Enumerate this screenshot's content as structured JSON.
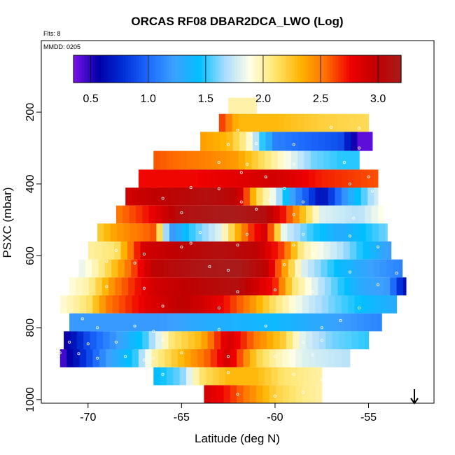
{
  "header": {
    "title": "ORCAS RF08 DBAR2DCA_LWO (Log)",
    "flights_note": "Flts: 8",
    "date_note": "MMDD: 0205"
  },
  "chart_data": {
    "type": "heatmap",
    "title": "ORCAS RF08 DBAR2DCA_LWO (Log)",
    "xlabel": "Latitude (deg N)",
    "ylabel": "PSXC (mbar)",
    "xlim": [
      -72.5,
      -51.5
    ],
    "ylim": [
      1010,
      1
    ],
    "y_reversed": true,
    "x_ticks": [
      -70,
      -65,
      -60,
      -55
    ],
    "x_tick_labels": [
      "-70",
      "-65",
      "-60",
      "-55"
    ],
    "y_ticks": [
      200,
      400,
      600,
      800,
      1000
    ],
    "y_tick_labels": [
      "200",
      "400",
      "600",
      "800",
      "1000"
    ],
    "colorbar": {
      "range": [
        0.35,
        3.2
      ],
      "ticks": [
        0.5,
        1.0,
        1.5,
        2.0,
        2.5,
        3.0
      ],
      "tick_labels": [
        "0.5",
        "1.0",
        "1.5",
        "2.0",
        "2.5",
        "3.0"
      ],
      "palette": [
        "#7a12e8",
        "#0000a8",
        "#0030d8",
        "#1e6cff",
        "#3ca0ff",
        "#00c0ff",
        "#a8dcff",
        "#ffffe6",
        "#ffe56e",
        "#ffb400",
        "#ff7000",
        "#ee0000",
        "#c00000",
        "#a81c1c"
      ]
    },
    "bands": [
      {
        "p_center": 180,
        "p_top": 160,
        "p_bottom": 205,
        "lat_start": -62.5,
        "lat_end": -61.0,
        "values": [
          [
            -62.5,
            2.0
          ],
          [
            -61.0,
            2.0
          ]
        ]
      },
      {
        "p_center": 230,
        "p_top": 205,
        "p_bottom": 255,
        "lat_start": -63.0,
        "lat_end": -55.0,
        "values": [
          [
            -63.0,
            2.7
          ],
          [
            -62.0,
            2.3
          ],
          [
            -60.0,
            2.3
          ],
          [
            -57.5,
            2.2
          ],
          [
            -55.0,
            2.15
          ]
        ]
      },
      {
        "p_center": 282,
        "p_top": 255,
        "p_bottom": 308,
        "lat_start": -64.0,
        "lat_end": -54.8,
        "values": [
          [
            -64.0,
            2.4
          ],
          [
            -62.5,
            2.3
          ],
          [
            -61.5,
            2.0
          ],
          [
            -60.0,
            1.1
          ],
          [
            -58.5,
            1.0
          ],
          [
            -56.5,
            0.9
          ],
          [
            -55.5,
            0.4
          ]
        ]
      },
      {
        "p_center": 335,
        "p_top": 308,
        "p_bottom": 360,
        "lat_start": -66.5,
        "lat_end": -55.5,
        "values": [
          [
            -66.5,
            2.6
          ],
          [
            -64.0,
            2.5
          ],
          [
            -62.0,
            2.4
          ],
          [
            -60.0,
            2.0
          ],
          [
            -58.0,
            1.6
          ],
          [
            -56.5,
            1.5
          ],
          [
            -55.5,
            1.5
          ]
        ]
      },
      {
        "p_center": 385,
        "p_top": 360,
        "p_bottom": 410,
        "lat_start": -67.3,
        "lat_end": -54.5,
        "values": [
          [
            -67.3,
            2.75
          ],
          [
            -64.5,
            2.75
          ],
          [
            -62.5,
            2.8
          ],
          [
            -60.0,
            2.9
          ],
          [
            -57.5,
            2.7
          ],
          [
            -54.5,
            2.6
          ]
        ]
      },
      {
        "p_center": 435,
        "p_top": 410,
        "p_bottom": 460,
        "lat_start": -68.0,
        "lat_end": -54.5,
        "values": [
          [
            -68.0,
            2.9
          ],
          [
            -66.0,
            3.0
          ],
          [
            -63.5,
            3.1
          ],
          [
            -62.0,
            3.0
          ],
          [
            -61.0,
            2.2
          ],
          [
            -60.0,
            1.8
          ],
          [
            -59.0,
            1.2
          ],
          [
            -57.5,
            0.6
          ],
          [
            -56.0,
            1.3
          ],
          [
            -54.5,
            1.8
          ]
        ]
      },
      {
        "p_center": 485,
        "p_top": 460,
        "p_bottom": 510,
        "lat_start": -68.5,
        "lat_end": -54.2,
        "values": [
          [
            -68.5,
            2.5
          ],
          [
            -67.0,
            2.7
          ],
          [
            -65.0,
            3.1
          ],
          [
            -62.5,
            3.2
          ],
          [
            -60.5,
            3.1
          ],
          [
            -59.0,
            2.5
          ],
          [
            -57.5,
            1.8
          ],
          [
            -55.5,
            1.7
          ],
          [
            -54.2,
            1.9
          ]
        ]
      },
      {
        "p_center": 535,
        "p_top": 510,
        "p_bottom": 560,
        "lat_start": -69.5,
        "lat_end": -54.0,
        "values": [
          [
            -69.5,
            2.2
          ],
          [
            -68.5,
            2.4
          ],
          [
            -66.5,
            2.6
          ],
          [
            -65.5,
            1.2
          ],
          [
            -64.5,
            1.5
          ],
          [
            -63.0,
            1.8
          ],
          [
            -61.5,
            2.6
          ],
          [
            -60.5,
            2.9
          ],
          [
            -59.5,
            1.8
          ],
          [
            -58.0,
            1.5
          ],
          [
            -56.5,
            1.3
          ],
          [
            -54.0,
            1.6
          ]
        ]
      },
      {
        "p_center": 585,
        "p_top": 560,
        "p_bottom": 610,
        "lat_start": -70.0,
        "lat_end": -53.8,
        "values": [
          [
            -70.0,
            2.0
          ],
          [
            -68.5,
            2.1
          ],
          [
            -67.0,
            2.9
          ],
          [
            -65.0,
            3.0
          ],
          [
            -63.0,
            3.1
          ],
          [
            -61.0,
            3.0
          ],
          [
            -59.5,
            2.6
          ],
          [
            -58.5,
            2.0
          ],
          [
            -56.5,
            1.7
          ],
          [
            -55.0,
            1.4
          ],
          [
            -53.8,
            1.2
          ]
        ]
      },
      {
        "p_center": 635,
        "p_top": 610,
        "p_bottom": 660,
        "lat_start": -70.5,
        "lat_end": -53.2,
        "values": [
          [
            -70.5,
            1.8
          ],
          [
            -69.5,
            2.0
          ],
          [
            -68.5,
            2.3
          ],
          [
            -66.5,
            3.0
          ],
          [
            -64.0,
            3.15
          ],
          [
            -62.0,
            3.2
          ],
          [
            -60.5,
            3.0
          ],
          [
            -59.5,
            2.4
          ],
          [
            -58.5,
            1.8
          ],
          [
            -56.5,
            1.4
          ],
          [
            -54.5,
            1.2
          ],
          [
            -53.2,
            1.1
          ]
        ]
      },
      {
        "p_center": 685,
        "p_top": 660,
        "p_bottom": 710,
        "lat_start": -71.0,
        "lat_end": -53.0,
        "values": [
          [
            -71.0,
            1.9
          ],
          [
            -70.0,
            2.0
          ],
          [
            -68.5,
            2.5
          ],
          [
            -66.5,
            2.9
          ],
          [
            -64.5,
            3.0
          ],
          [
            -62.0,
            3.1
          ],
          [
            -60.0,
            2.7
          ],
          [
            -59.0,
            2.1
          ],
          [
            -57.5,
            1.7
          ],
          [
            -55.5,
            1.3
          ],
          [
            -54.0,
            1.2
          ],
          [
            -53.0,
            0.6
          ]
        ]
      },
      {
        "p_center": 735,
        "p_top": 710,
        "p_bottom": 760,
        "lat_start": -71.5,
        "lat_end": -53.5,
        "values": [
          [
            -71.5,
            1.9
          ],
          [
            -70.0,
            2.1
          ],
          [
            -69.0,
            2.5
          ],
          [
            -67.0,
            2.8
          ],
          [
            -65.0,
            3.0
          ],
          [
            -63.0,
            2.8
          ],
          [
            -61.5,
            2.5
          ],
          [
            -60.0,
            2.1
          ],
          [
            -58.5,
            1.8
          ],
          [
            -57.0,
            1.6
          ],
          [
            -55.0,
            1.4
          ],
          [
            -53.5,
            1.3
          ]
        ]
      },
      {
        "p_center": 785,
        "p_top": 760,
        "p_bottom": 810,
        "lat_start": -71.0,
        "lat_end": -54.3,
        "values": [
          [
            -71.0,
            1.2
          ],
          [
            -68.0,
            1.2
          ],
          [
            -66.0,
            1.2
          ],
          [
            -64.0,
            1.3
          ],
          [
            -62.0,
            1.35
          ],
          [
            -60.0,
            1.4
          ],
          [
            -58.0,
            1.3
          ],
          [
            -56.0,
            1.2
          ],
          [
            -54.3,
            1.1
          ]
        ]
      },
      {
        "p_center": 835,
        "p_top": 810,
        "p_bottom": 860,
        "lat_start": -71.3,
        "lat_end": -55.0,
        "values": [
          [
            -71.3,
            0.5
          ],
          [
            -70.0,
            0.9
          ],
          [
            -68.5,
            1.2
          ],
          [
            -67.0,
            1.5
          ],
          [
            -65.5,
            2.1
          ],
          [
            -64.0,
            2.3
          ],
          [
            -62.5,
            2.9
          ],
          [
            -61.0,
            2.5
          ],
          [
            -59.5,
            2.2
          ],
          [
            -58.5,
            1.8
          ],
          [
            -57.0,
            1.6
          ],
          [
            -55.0,
            1.5
          ]
        ]
      },
      {
        "p_center": 885,
        "p_top": 860,
        "p_bottom": 910,
        "lat_start": -71.5,
        "lat_end": -56.0,
        "values": [
          [
            -71.5,
            0.4
          ],
          [
            -70.5,
            0.7
          ],
          [
            -69.0,
            1.2
          ],
          [
            -67.5,
            1.5
          ],
          [
            -66.5,
            2.0
          ],
          [
            -65.0,
            2.3
          ],
          [
            -63.5,
            2.6
          ],
          [
            -62.5,
            2.9
          ],
          [
            -61.0,
            2.2
          ],
          [
            -60.0,
            2.0
          ],
          [
            -58.5,
            1.8
          ],
          [
            -56.0,
            1.7
          ]
        ]
      },
      {
        "p_center": 935,
        "p_top": 910,
        "p_bottom": 960,
        "lat_start": -66.5,
        "lat_end": -57.5,
        "values": [
          [
            -66.5,
            1.4
          ],
          [
            -65.0,
            1.6
          ],
          [
            -64.0,
            2.1
          ],
          [
            -62.5,
            2.3
          ],
          [
            -61.0,
            2.3
          ],
          [
            -59.5,
            2.1
          ],
          [
            -57.5,
            2.0
          ]
        ]
      },
      {
        "p_center": 985,
        "p_top": 960,
        "p_bottom": 1010,
        "lat_start": -63.8,
        "lat_end": -57.5,
        "values": [
          [
            -63.8,
            2.9
          ],
          [
            -62.5,
            2.7
          ],
          [
            -61.0,
            2.4
          ],
          [
            -60.0,
            2.2
          ],
          [
            -58.5,
            2.05
          ],
          [
            -57.5,
            2.0
          ]
        ]
      }
    ],
    "sample_points": [
      [
        -62.0,
        250
      ],
      [
        -61.3,
        262
      ],
      [
        -57.0,
        242
      ],
      [
        -55.5,
        245
      ],
      [
        -62.5,
        290
      ],
      [
        -61.0,
        288
      ],
      [
        -59.0,
        290
      ],
      [
        -55.5,
        300
      ],
      [
        -63.0,
        340
      ],
      [
        -61.5,
        345
      ],
      [
        -59.0,
        345
      ],
      [
        -56.3,
        340
      ],
      [
        -61.8,
        368
      ],
      [
        -60.5,
        380
      ],
      [
        -55.0,
        380
      ],
      [
        -56.0,
        400
      ],
      [
        -64.5,
        410
      ],
      [
        -63.0,
        413
      ],
      [
        -59.5,
        412
      ],
      [
        -54.8,
        420
      ],
      [
        -66.0,
        440
      ],
      [
        -61.8,
        450
      ],
      [
        -60.3,
        445
      ],
      [
        -58.5,
        450
      ],
      [
        -65.0,
        480
      ],
      [
        -61.0,
        470
      ],
      [
        -59.0,
        485
      ],
      [
        -55.8,
        495
      ],
      [
        -64.0,
        535
      ],
      [
        -61.5,
        540
      ],
      [
        -58.5,
        540
      ],
      [
        -56.0,
        545
      ],
      [
        -64.5,
        565
      ],
      [
        -62.0,
        570
      ],
      [
        -59.0,
        570
      ],
      [
        -54.5,
        575
      ],
      [
        -68.5,
        585
      ],
      [
        -67.0,
        595
      ],
      [
        -65.0,
        575
      ],
      [
        -58.0,
        595
      ],
      [
        -69.0,
        615
      ],
      [
        -67.5,
        620
      ],
      [
        -63.5,
        630
      ],
      [
        -62.5,
        640
      ],
      [
        -59.5,
        625
      ],
      [
        -56.0,
        645
      ],
      [
        -53.5,
        648
      ],
      [
        -54.5,
        680
      ],
      [
        -69.0,
        685
      ],
      [
        -67.0,
        690
      ],
      [
        -62.0,
        700
      ],
      [
        -60.0,
        695
      ],
      [
        -58.0,
        700
      ],
      [
        -66.0,
        740
      ],
      [
        -63.0,
        745
      ],
      [
        -55.5,
        745
      ],
      [
        -70.3,
        775
      ],
      [
        -69.5,
        800
      ],
      [
        -67.5,
        795
      ],
      [
        -66.5,
        810
      ],
      [
        -63.0,
        805
      ],
      [
        -60.5,
        795
      ],
      [
        -57.5,
        800
      ],
      [
        -56.5,
        780
      ],
      [
        -71.0,
        840
      ],
      [
        -70.0,
        845
      ],
      [
        -68.5,
        840
      ],
      [
        -66.0,
        835
      ],
      [
        -58.5,
        840
      ],
      [
        -57.5,
        835
      ],
      [
        -71.5,
        870
      ],
      [
        -70.5,
        872
      ],
      [
        -69.5,
        885
      ],
      [
        -68.0,
        880
      ],
      [
        -67.0,
        890
      ],
      [
        -66.5,
        885
      ],
      [
        -65.0,
        870
      ],
      [
        -62.5,
        880
      ],
      [
        -60.0,
        880
      ],
      [
        -58.0,
        875
      ],
      [
        -66.0,
        930
      ],
      [
        -62.5,
        925
      ],
      [
        -59.0,
        930
      ],
      [
        -57.5,
        945
      ],
      [
        -62.0,
        985
      ],
      [
        -60.0,
        990
      ],
      [
        -58.5,
        980
      ]
    ]
  }
}
